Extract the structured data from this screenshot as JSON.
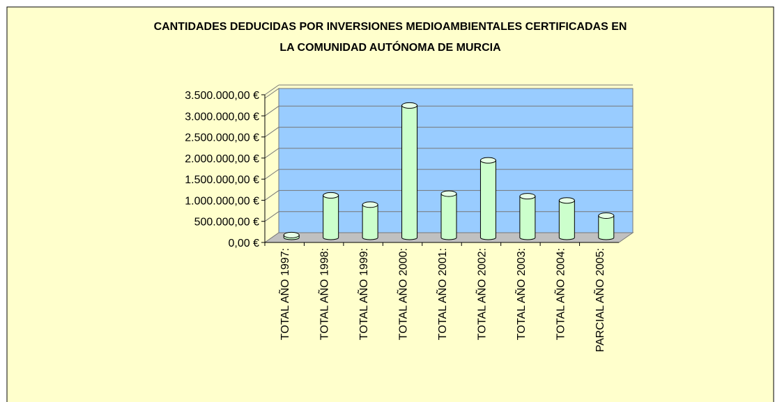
{
  "chart_data": {
    "type": "bar",
    "title": "CANTIDADES DEDUCIDAS POR INVERSIONES MEDIOAMBIENTALES CERTIFICADAS EN",
    "subtitle": "LA COMUNIDAD AUTÓNOMA DE MURCIA",
    "categories": [
      "TOTAL AÑO 1997:",
      "TOTAL AÑO 1998:",
      "TOTAL AÑO 1999:",
      "TOTAL AÑO 2000:",
      "TOTAL AÑO 2001:",
      "TOTAL AÑO 2002:",
      "TOTAL AÑO 2003:",
      "TOTAL AÑO 2004:",
      "PARCIAL AÑO 2005:"
    ],
    "values": [
      60000,
      1000000,
      780000,
      3130000,
      1040000,
      1830000,
      980000,
      880000,
      520000
    ],
    "color": "#CCFFCC",
    "ylim": [
      0,
      3500000
    ],
    "yticks": [
      {
        "value": 0,
        "label": "0,00 €"
      },
      {
        "value": 500000,
        "label": "500.000,00 €"
      },
      {
        "value": 1000000,
        "label": "1.000.000,00 €"
      },
      {
        "value": 1500000,
        "label": "1.500.000,00 €"
      },
      {
        "value": 2000000,
        "label": "2.000.000,00 €"
      },
      {
        "value": 2500000,
        "label": "2.500.000,00 €"
      },
      {
        "value": 3000000,
        "label": "3.000.000,00 €"
      },
      {
        "value": 3500000,
        "label": "3.500.000,00 €"
      }
    ],
    "grid": true
  }
}
